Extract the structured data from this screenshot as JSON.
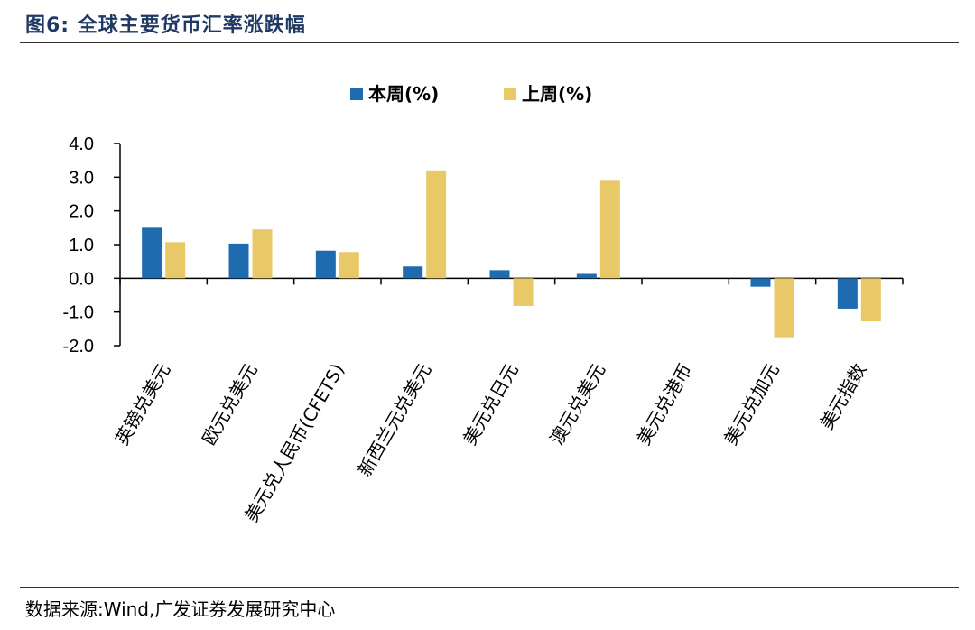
{
  "header": {
    "title": "图6:  全球主要货币汇率涨跌幅"
  },
  "footer": {
    "source": "数据来源:Wind,广发证券发展研究中心"
  },
  "colors": {
    "series_this_week": "#1f6bb0",
    "series_last_week": "#e9c867",
    "title": "#1f3864"
  },
  "chart_data": {
    "type": "bar",
    "categories": [
      "英镑兑美元",
      "欧元兑美元",
      "美元兑人民币(CFETS)",
      "新西兰元兑美元",
      "美元兑日元",
      "澳元兑美元",
      "美元兑港币",
      "美元兑加元",
      "美元指数"
    ],
    "series": [
      {
        "name": "本周(%)",
        "values": [
          1.5,
          1.03,
          0.82,
          0.35,
          0.24,
          0.13,
          0.0,
          -0.25,
          -0.9
        ]
      },
      {
        "name": "上周(%)",
        "values": [
          1.07,
          1.45,
          0.78,
          3.2,
          -0.82,
          2.92,
          0.0,
          -1.75,
          -1.28
        ]
      }
    ],
    "ylim": [
      -2.0,
      4.0
    ],
    "yticks": [
      "4.0",
      "3.0",
      "2.0",
      "1.0",
      "0.0",
      "-1.0",
      "-2.0"
    ],
    "legend_position": "top-center",
    "grid": false
  }
}
